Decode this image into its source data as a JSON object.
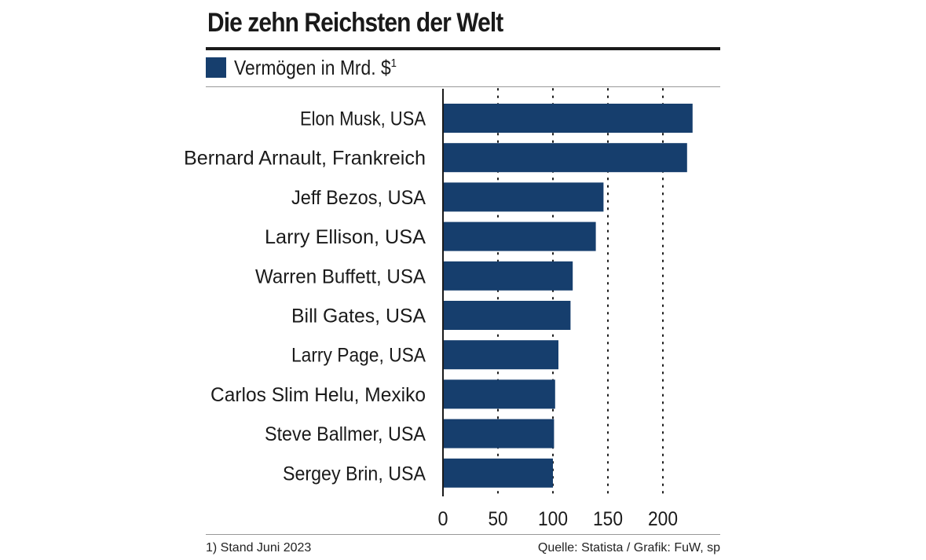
{
  "header": {
    "title": "Die zehn Reichsten der Welt"
  },
  "legend": {
    "label": "Vermögen in Mrd. $",
    "footnote_marker": "1"
  },
  "footer": {
    "footnote": "1) Stand Juni 2023",
    "source": "Quelle: Statista / Grafik: FuW, sp"
  },
  "colors": {
    "bar": "#163e6d",
    "axis": "#1a1a1a",
    "grid": "#1a1a1a"
  },
  "chart_data": {
    "type": "bar",
    "orientation": "horizontal",
    "title": "Die zehn Reichsten der Welt",
    "xlabel": "",
    "ylabel": "",
    "series": [
      {
        "name": "Vermögen in Mrd. $",
        "values": [
          227,
          222,
          146,
          139,
          118,
          116,
          105,
          102,
          101,
          100
        ]
      }
    ],
    "categories": [
      "Elon Musk, USA",
      "Bernard Arnault, Frankreich",
      "Jeff Bezos, USA",
      "Larry Ellison, USA",
      "Warren Buffett, USA",
      "Bill Gates, USA",
      "Larry Page, USA",
      "Carlos Slim Helu, Mexiko",
      "Steve Ballmer, USA",
      "Sergey Brin, USA"
    ],
    "xlim": [
      0,
      250
    ],
    "ticks": [
      0,
      50,
      100,
      150,
      200
    ],
    "tick_labels": [
      "0",
      "50",
      "100",
      "150",
      "200"
    ],
    "grid": "dotted vertical",
    "legend_position": "top-left"
  }
}
